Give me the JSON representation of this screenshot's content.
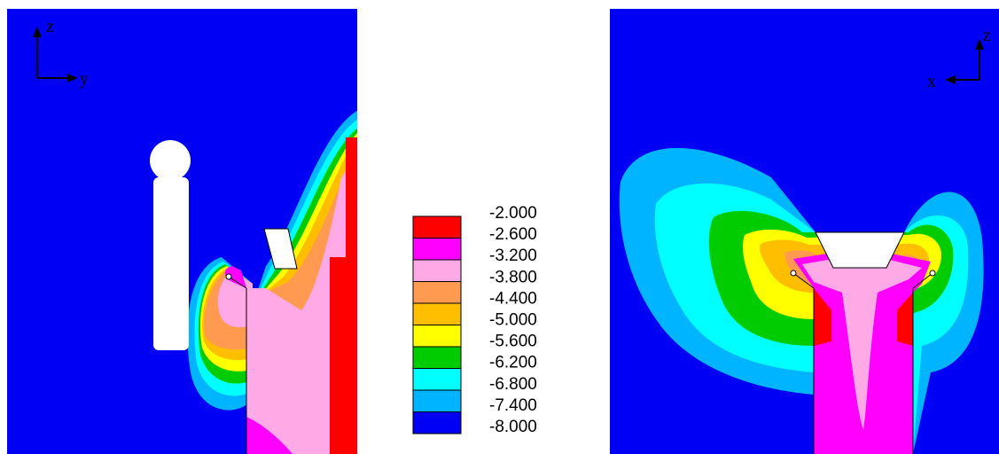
{
  "left_view": {
    "axis_up": "z",
    "axis_side": "y"
  },
  "right_view": {
    "axis_up": "z",
    "axis_side": "x"
  },
  "colorbar": {
    "labels": [
      "-2.000",
      "-2.600",
      "-3.200",
      "-3.800",
      "-4.400",
      "-5.000",
      "-5.600",
      "-6.200",
      "-6.800",
      "-7.400",
      "-8.000"
    ],
    "colors": [
      "#ff0000",
      "#ff00ff",
      "#ffaae6",
      "#ff9a50",
      "#ffbe00",
      "#ffff00",
      "#00cc00",
      "#00ffff",
      "#00b4ff",
      "#0000f5"
    ]
  }
}
